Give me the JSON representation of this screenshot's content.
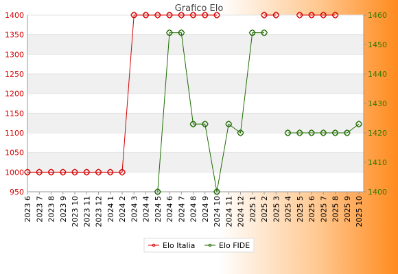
{
  "chart_data": {
    "type": "line",
    "title": "Grafico Elo",
    "categories": [
      "2023 6",
      "2023 7",
      "2023 8",
      "2023 9",
      "2023 10",
      "2023 11",
      "2023 12",
      "2024 1",
      "2024 2",
      "2024 3",
      "2024 4",
      "2024 5",
      "2024 6",
      "2024 7",
      "2024 8",
      "2024 9",
      "2024 10",
      "2024 11",
      "2024 12",
      "2025 1",
      "2025 2",
      "2025 3",
      "2025 4",
      "2025 5",
      "2025 6",
      "2025 7",
      "2025 8",
      "2025 9",
      "2025 10"
    ],
    "left_axis": {
      "ylim": [
        950,
        1400
      ],
      "ticks": [
        950,
        1000,
        1050,
        1100,
        1150,
        1200,
        1250,
        1300,
        1350,
        1400
      ],
      "color": "#d40000"
    },
    "right_axis": {
      "ylim": [
        1400,
        1460
      ],
      "ticks": [
        1400,
        1410,
        1420,
        1430,
        1440,
        1450,
        1460
      ],
      "color": "#2a7a00"
    },
    "grid": "horizontal bands",
    "legend_position": "bottom",
    "series": [
      {
        "name": "Elo Italia",
        "axis": "left",
        "color": "#d40000",
        "values": [
          1000,
          1000,
          1000,
          1000,
          1000,
          1000,
          1000,
          1000,
          1000,
          1400,
          1400,
          1400,
          1400,
          1400,
          1400,
          1400,
          1400,
          null,
          null,
          null,
          1400,
          1400,
          null,
          1400,
          1400,
          1400,
          1400,
          null,
          null
        ]
      },
      {
        "name": "Elo FIDE",
        "axis": "right",
        "color": "#1e6b00",
        "values": [
          null,
          null,
          null,
          null,
          null,
          null,
          null,
          null,
          null,
          null,
          null,
          1400,
          1454,
          1454,
          1423,
          1423,
          1400,
          1423,
          1420,
          1454,
          1454,
          null,
          1420,
          1420,
          1420,
          1420,
          1420,
          1420,
          1423
        ]
      }
    ]
  }
}
